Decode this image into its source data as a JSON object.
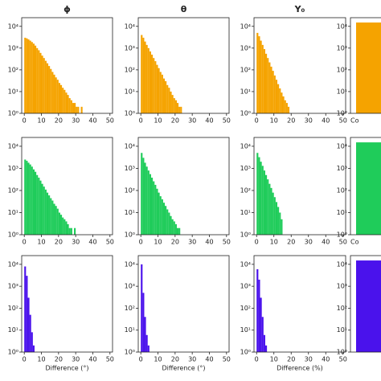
{
  "chart_data": [
    {
      "type": "histogram",
      "title": "ϕ",
      "color": "#f5a300",
      "log_y": true,
      "bins": [
        0,
        1,
        2,
        3,
        4,
        5,
        6,
        7,
        8,
        9,
        10,
        11,
        12,
        13,
        14,
        15,
        16,
        17,
        18,
        19,
        20,
        21,
        22,
        23,
        24,
        25,
        26,
        27,
        28,
        29,
        30,
        31,
        32,
        33,
        34,
        35,
        36,
        37,
        38,
        39,
        40,
        41,
        42,
        43,
        44,
        45,
        46
      ],
      "counts": [
        3000,
        2800,
        2500,
        2200,
        1900,
        1600,
        1300,
        1000,
        800,
        600,
        450,
        350,
        260,
        200,
        150,
        110,
        80,
        60,
        45,
        35,
        25,
        20,
        15,
        12,
        9,
        7,
        5,
        4,
        3,
        3,
        2,
        2,
        1,
        2,
        1,
        0,
        0,
        0,
        1,
        0,
        0,
        0,
        1,
        0,
        0,
        1
      ],
      "xlim": [
        -1.5,
        51.5
      ],
      "xticks": [
        0,
        10,
        20,
        30,
        40,
        50
      ],
      "ylim": [
        1,
        25000
      ],
      "yticks": [
        {
          "value": 1,
          "label": "10⁰"
        },
        {
          "value": 10,
          "label": "10¹"
        },
        {
          "value": 100,
          "label": "10²"
        },
        {
          "value": 1000,
          "label": "10³"
        },
        {
          "value": 10000,
          "label": "10⁴"
        }
      ]
    },
    {
      "type": "histogram",
      "title": "θ",
      "color": "#f5a300",
      "log_y": true,
      "bins": [
        0,
        1,
        2,
        3,
        4,
        5,
        6,
        7,
        8,
        9,
        10,
        11,
        12,
        13,
        14,
        15,
        16,
        17,
        18,
        19,
        20,
        21,
        22,
        23,
        24,
        25,
        26,
        27,
        28,
        29,
        30
      ],
      "counts": [
        4000,
        3000,
        2000,
        1400,
        1000,
        700,
        500,
        350,
        250,
        170,
        120,
        80,
        60,
        40,
        30,
        20,
        15,
        10,
        7,
        5,
        4,
        3,
        2,
        2,
        1,
        1,
        1,
        1,
        0,
        1
      ],
      "xlim": [
        -1.5,
        51.5
      ],
      "xticks": [
        0,
        10,
        20,
        30,
        40,
        50
      ],
      "ylim": [
        1,
        25000
      ],
      "yticks": [
        {
          "value": 1,
          "label": "10⁰"
        },
        {
          "value": 10,
          "label": "10¹"
        },
        {
          "value": 100,
          "label": "10²"
        },
        {
          "value": 1000,
          "label": "10³"
        },
        {
          "value": 10000,
          "label": "10⁴"
        }
      ]
    },
    {
      "type": "histogram",
      "title": "Y₀",
      "color": "#f5a300",
      "log_y": true,
      "bins": [
        0,
        1,
        2,
        3,
        4,
        5,
        6,
        7,
        8,
        9,
        10,
        11,
        12,
        13,
        14,
        15,
        16,
        17,
        18,
        19,
        20,
        21,
        22
      ],
      "counts": [
        5000,
        3500,
        2200,
        1400,
        900,
        550,
        350,
        220,
        140,
        90,
        55,
        35,
        22,
        14,
        9,
        6,
        4,
        3,
        2,
        1,
        1,
        1
      ],
      "xlim": [
        -1.5,
        51.5
      ],
      "xticks": [
        0,
        10,
        20,
        30,
        40,
        50
      ],
      "ylim": [
        1,
        25000
      ],
      "yticks": [
        {
          "value": 1,
          "label": "10⁰"
        },
        {
          "value": 10,
          "label": "10¹"
        },
        {
          "value": 100,
          "label": "10²"
        },
        {
          "value": 1000,
          "label": "10³"
        },
        {
          "value": 10000,
          "label": "10⁴"
        }
      ]
    },
    {
      "type": "bar",
      "color": "#f5a300",
      "log_y": true,
      "categories": [
        "Co"
      ],
      "values": [
        15000
      ],
      "ylim": [
        1,
        25000
      ],
      "yticks": [
        {
          "value": 1,
          "label": "10⁰"
        },
        {
          "value": 10,
          "label": "10¹"
        },
        {
          "value": 100,
          "label": "10²"
        },
        {
          "value": 1000,
          "label": "10³"
        },
        {
          "value": 10000,
          "label": "10⁴"
        }
      ]
    },
    {
      "type": "histogram",
      "color": "#1fcc5a",
      "log_y": true,
      "bins": [
        0,
        1,
        2,
        3,
        4,
        5,
        6,
        7,
        8,
        9,
        10,
        11,
        12,
        13,
        14,
        15,
        16,
        17,
        18,
        19,
        20,
        21,
        22,
        23,
        24,
        25,
        26,
        27,
        28,
        29,
        30,
        31,
        32,
        33,
        34,
        35,
        36,
        37,
        38,
        39,
        40
      ],
      "counts": [
        2500,
        2200,
        1800,
        1500,
        1200,
        900,
        700,
        500,
        380,
        280,
        200,
        150,
        110,
        80,
        60,
        45,
        35,
        25,
        20,
        15,
        10,
        8,
        6,
        5,
        4,
        3,
        2,
        2,
        1,
        2,
        1,
        0,
        1,
        1,
        0,
        1,
        0,
        0,
        0,
        1
      ],
      "xlim": [
        -1.5,
        51.5
      ],
      "xticks": [
        0,
        10,
        20,
        30,
        40,
        50
      ],
      "ylim": [
        1,
        25000
      ],
      "yticks": [
        {
          "value": 1,
          "label": "10⁰"
        },
        {
          "value": 10,
          "label": "10¹"
        },
        {
          "value": 100,
          "label": "10²"
        },
        {
          "value": 1000,
          "label": "10³"
        },
        {
          "value": 10000,
          "label": "10⁴"
        }
      ]
    },
    {
      "type": "histogram",
      "color": "#1fcc5a",
      "log_y": true,
      "bins": [
        0,
        1,
        2,
        3,
        4,
        5,
        6,
        7,
        8,
        9,
        10,
        11,
        12,
        13,
        14,
        15,
        16,
        17,
        18,
        19,
        20,
        21,
        22,
        23,
        24,
        25,
        26,
        27,
        28,
        29,
        30
      ],
      "counts": [
        5000,
        3000,
        1800,
        1200,
        800,
        550,
        380,
        260,
        180,
        120,
        80,
        55,
        40,
        28,
        20,
        14,
        10,
        7,
        5,
        4,
        3,
        2,
        2,
        1,
        1,
        1,
        0,
        1,
        0,
        1
      ],
      "xlim": [
        -1.5,
        51.5
      ],
      "xticks": [
        0,
        10,
        20,
        30,
        40,
        50
      ],
      "ylim": [
        1,
        25000
      ],
      "yticks": [
        {
          "value": 1,
          "label": "10⁰"
        },
        {
          "value": 10,
          "label": "10¹"
        },
        {
          "value": 100,
          "label": "10²"
        },
        {
          "value": 1000,
          "label": "10³"
        },
        {
          "value": 10000,
          "label": "10⁴"
        }
      ]
    },
    {
      "type": "histogram",
      "color": "#1fcc5a",
      "log_y": true,
      "bins": [
        0,
        1,
        2,
        3,
        4,
        5,
        6,
        7,
        8,
        9,
        10,
        11,
        12,
        13,
        14,
        15
      ],
      "counts": [
        5000,
        3200,
        2000,
        1300,
        800,
        500,
        320,
        200,
        130,
        80,
        50,
        30,
        18,
        10,
        5
      ],
      "xlim": [
        -1.5,
        51.5
      ],
      "xticks": [
        0,
        10,
        20,
        30,
        40,
        50
      ],
      "ylim": [
        1,
        25000
      ],
      "yticks": [
        {
          "value": 1,
          "label": "10⁰"
        },
        {
          "value": 10,
          "label": "10¹"
        },
        {
          "value": 100,
          "label": "10²"
        },
        {
          "value": 1000,
          "label": "10³"
        },
        {
          "value": 10000,
          "label": "10⁴"
        }
      ]
    },
    {
      "type": "bar",
      "color": "#1fcc5a",
      "log_y": true,
      "categories": [
        "Co"
      ],
      "values": [
        15000
      ],
      "ylim": [
        1,
        25000
      ],
      "yticks": [
        {
          "value": 1,
          "label": "10⁰"
        },
        {
          "value": 10,
          "label": "10¹"
        },
        {
          "value": 100,
          "label": "10²"
        },
        {
          "value": 1000,
          "label": "10³"
        },
        {
          "value": 10000,
          "label": "10⁴"
        }
      ]
    },
    {
      "type": "histogram",
      "xlabel": "Difference (°)",
      "color": "#4a12ec",
      "log_y": true,
      "bins": [
        0,
        1,
        2,
        3,
        4,
        5,
        6
      ],
      "counts": [
        8000,
        3000,
        300,
        50,
        8,
        2
      ],
      "xlim": [
        -1.5,
        51.5
      ],
      "xticks": [
        0,
        10,
        20,
        30,
        40,
        50
      ],
      "ylim": [
        1,
        25000
      ],
      "yticks": [
        {
          "value": 1,
          "label": "10⁰"
        },
        {
          "value": 10,
          "label": "10¹"
        },
        {
          "value": 100,
          "label": "10²"
        },
        {
          "value": 1000,
          "label": "10³"
        },
        {
          "value": 10000,
          "label": "10⁴"
        }
      ]
    },
    {
      "type": "histogram",
      "xlabel": "Difference (°)",
      "color": "#4a12ec",
      "log_y": true,
      "bins": [
        0,
        1,
        2,
        3,
        4,
        5
      ],
      "counts": [
        10000,
        500,
        40,
        6,
        2
      ],
      "xlim": [
        -1.5,
        51.5
      ],
      "xticks": [
        0,
        10,
        20,
        30,
        40,
        50
      ],
      "ylim": [
        1,
        25000
      ],
      "yticks": [
        {
          "value": 1,
          "label": "10⁰"
        },
        {
          "value": 10,
          "label": "10¹"
        },
        {
          "value": 100,
          "label": "10²"
        },
        {
          "value": 1000,
          "label": "10³"
        },
        {
          "value": 10000,
          "label": "10⁴"
        }
      ]
    },
    {
      "type": "histogram",
      "xlabel": "Difference (%)",
      "color": "#4a12ec",
      "log_y": true,
      "bins": [
        0,
        1,
        2,
        3,
        4,
        5,
        6
      ],
      "counts": [
        6000,
        2000,
        300,
        40,
        6,
        2
      ],
      "xlim": [
        -1.5,
        51.5
      ],
      "xticks": [
        0,
        10,
        20,
        30,
        40,
        50
      ],
      "ylim": [
        1,
        25000
      ],
      "yticks": [
        {
          "value": 1,
          "label": "10⁰"
        },
        {
          "value": 10,
          "label": "10¹"
        },
        {
          "value": 100,
          "label": "10²"
        },
        {
          "value": 1000,
          "label": "10³"
        },
        {
          "value": 10000,
          "label": "10⁴"
        }
      ]
    },
    {
      "type": "bar",
      "color": "#4a12ec",
      "log_y": true,
      "categories": [
        null
      ],
      "values": [
        15000
      ],
      "ylim": [
        1,
        25000
      ],
      "yticks": [
        {
          "value": 1,
          "label": "10⁰"
        },
        {
          "value": 10,
          "label": "10¹"
        },
        {
          "value": 100,
          "label": "10²"
        },
        {
          "value": 1000,
          "label": "10³"
        },
        {
          "value": 10000,
          "label": "10⁴"
        }
      ]
    }
  ]
}
